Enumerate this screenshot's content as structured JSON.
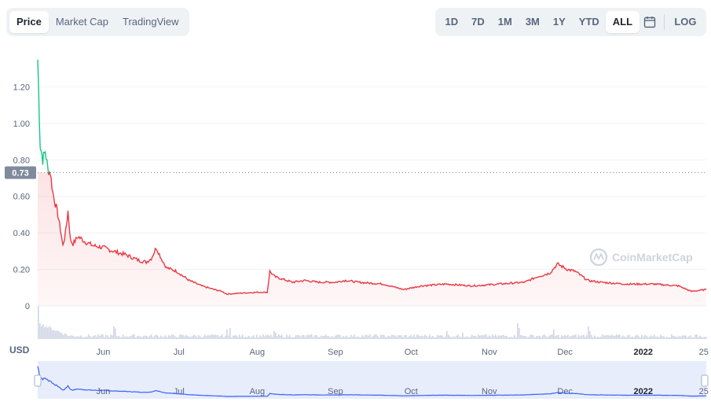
{
  "tabs": [
    {
      "label": "Price",
      "active": true
    },
    {
      "label": "Market Cap",
      "active": false
    },
    {
      "label": "TradingView",
      "active": false
    }
  ],
  "ranges": [
    {
      "label": "1D",
      "active": false
    },
    {
      "label": "7D",
      "active": false
    },
    {
      "label": "1M",
      "active": false
    },
    {
      "label": "3M",
      "active": false
    },
    {
      "label": "1Y",
      "active": false
    },
    {
      "label": "YTD",
      "active": false
    },
    {
      "label": "ALL",
      "active": true
    }
  ],
  "calendar_icon": "calendar-icon",
  "log_label": "LOG",
  "currency_label": "USD",
  "watermark": "CoinMarketCap",
  "colors": {
    "up": "#16c784",
    "down": "#ea3943",
    "volume": "#cfd6e4",
    "navigator_line": "#3861fb",
    "reference_badge": "#808a9d"
  },
  "chart_data": {
    "type": "line",
    "title": "",
    "xlabel": "",
    "ylabel": "",
    "ylim": [
      0,
      1.4
    ],
    "yticks": [
      "0",
      "0.20",
      "0.40",
      "0.60",
      "0.80",
      "1.00",
      "1.20"
    ],
    "ytick_values": [
      0,
      0.2,
      0.4,
      0.6,
      0.8,
      1.0,
      1.2
    ],
    "reference_price": 0.73,
    "reference_label": "0.73",
    "x_start": "2021-05-06",
    "x_end": "2022-01-26",
    "xticks": [
      {
        "label": "Jun",
        "date": "2021-06-01",
        "bold": false
      },
      {
        "label": "Jul",
        "date": "2021-07-01",
        "bold": false
      },
      {
        "label": "Aug",
        "date": "2021-08-01",
        "bold": false
      },
      {
        "label": "Sep",
        "date": "2021-09-01",
        "bold": false
      },
      {
        "label": "Oct",
        "date": "2021-10-01",
        "bold": false
      },
      {
        "label": "Nov",
        "date": "2021-11-01",
        "bold": false
      },
      {
        "label": "Dec",
        "date": "2021-12-01",
        "bold": false
      },
      {
        "label": "2022",
        "date": "2022-01-01",
        "bold": true
      },
      {
        "label": "25",
        "date": "2022-01-25",
        "bold": false
      }
    ],
    "series": [
      {
        "points": [
          [
            "2021-05-06",
            1.35
          ],
          [
            "2021-05-07",
            0.88
          ],
          [
            "2021-05-08",
            0.8
          ],
          [
            "2021-05-09",
            0.85
          ],
          [
            "2021-05-10",
            0.75
          ],
          [
            "2021-05-11",
            0.73
          ],
          [
            "2021-05-12",
            0.62
          ],
          [
            "2021-05-13",
            0.56
          ],
          [
            "2021-05-14",
            0.5
          ],
          [
            "2021-05-15",
            0.42
          ],
          [
            "2021-05-16",
            0.33
          ],
          [
            "2021-05-17",
            0.4
          ],
          [
            "2021-05-18",
            0.52
          ],
          [
            "2021-05-19",
            0.36
          ],
          [
            "2021-05-20",
            0.34
          ],
          [
            "2021-05-22",
            0.38
          ],
          [
            "2021-05-25",
            0.35
          ],
          [
            "2021-05-28",
            0.33
          ],
          [
            "2021-06-01",
            0.32
          ],
          [
            "2021-06-05",
            0.3
          ],
          [
            "2021-06-10",
            0.28
          ],
          [
            "2021-06-15",
            0.25
          ],
          [
            "2021-06-18",
            0.24
          ],
          [
            "2021-06-20",
            0.26
          ],
          [
            "2021-06-22",
            0.32
          ],
          [
            "2021-06-24",
            0.26
          ],
          [
            "2021-06-26",
            0.21
          ],
          [
            "2021-06-30",
            0.19
          ],
          [
            "2021-07-02",
            0.17
          ],
          [
            "2021-07-05",
            0.14
          ],
          [
            "2021-07-10",
            0.11
          ],
          [
            "2021-07-15",
            0.09
          ],
          [
            "2021-07-18",
            0.08
          ],
          [
            "2021-07-20",
            0.065
          ],
          [
            "2021-07-25",
            0.07
          ],
          [
            "2021-08-01",
            0.075
          ],
          [
            "2021-08-05",
            0.075
          ],
          [
            "2021-08-06",
            0.19
          ],
          [
            "2021-08-08",
            0.16
          ],
          [
            "2021-08-15",
            0.13
          ],
          [
            "2021-08-20",
            0.14
          ],
          [
            "2021-08-25",
            0.13
          ],
          [
            "2021-09-01",
            0.13
          ],
          [
            "2021-09-05",
            0.14
          ],
          [
            "2021-09-10",
            0.13
          ],
          [
            "2021-09-20",
            0.12
          ],
          [
            "2021-09-28",
            0.09
          ],
          [
            "2021-10-05",
            0.11
          ],
          [
            "2021-10-15",
            0.12
          ],
          [
            "2021-10-25",
            0.11
          ],
          [
            "2021-11-05",
            0.12
          ],
          [
            "2021-11-15",
            0.13
          ],
          [
            "2021-11-20",
            0.16
          ],
          [
            "2021-11-25",
            0.18
          ],
          [
            "2021-11-28",
            0.23
          ],
          [
            "2021-12-02",
            0.2
          ],
          [
            "2021-12-05",
            0.19
          ],
          [
            "2021-12-10",
            0.14
          ],
          [
            "2021-12-15",
            0.13
          ],
          [
            "2021-12-25",
            0.12
          ],
          [
            "2022-01-05",
            0.12
          ],
          [
            "2022-01-15",
            0.11
          ],
          [
            "2022-01-20",
            0.08
          ],
          [
            "2022-01-26",
            0.09
          ]
        ]
      }
    ]
  }
}
